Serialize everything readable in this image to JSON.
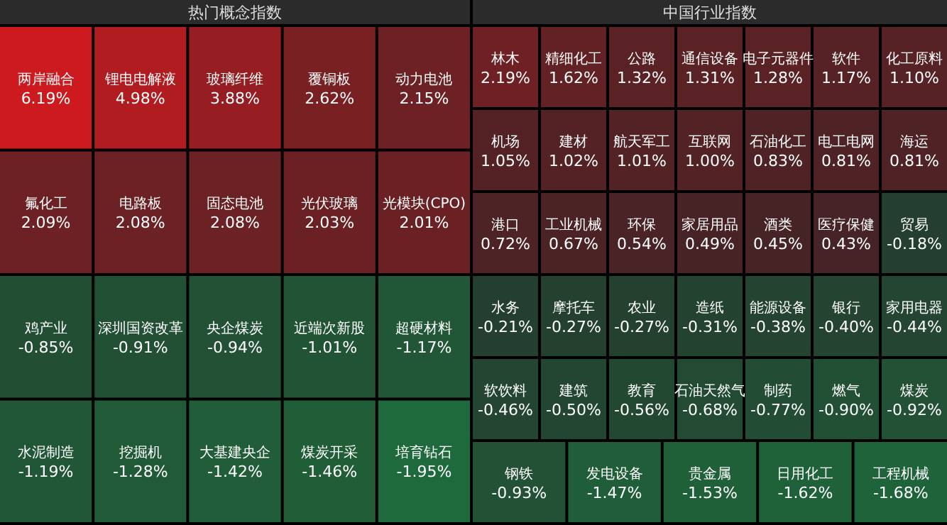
{
  "chart_data": [
    {
      "type": "other",
      "title": "热门概念指数",
      "categories": [
        "两岸融合",
        "锂电电解液",
        "玻璃纤维",
        "覆铜板",
        "动力电池",
        "氟化工",
        "电路板",
        "固态电池",
        "光伏玻璃",
        "光模块(CPO)",
        "鸡产业",
        "深圳国资改革",
        "央企煤炭",
        "近端次新股",
        "超硬材料",
        "水泥制造",
        "挖掘机",
        "大基建央企",
        "煤炭开采",
        "培育钻石"
      ],
      "values": [
        6.19,
        4.98,
        3.88,
        2.62,
        2.15,
        2.09,
        2.08,
        2.08,
        2.03,
        2.01,
        -0.85,
        -0.91,
        -0.94,
        -1.01,
        -1.17,
        -1.19,
        -1.28,
        -1.42,
        -1.46,
        -1.95
      ],
      "value_labels": [
        "6.19%",
        "4.98%",
        "3.88%",
        "2.62%",
        "2.15%",
        "2.09%",
        "2.08%",
        "2.08%",
        "2.03%",
        "2.01%",
        "-0.85%",
        "-0.91%",
        "-0.94%",
        "-1.01%",
        "-1.17%",
        "-1.19%",
        "-1.28%",
        "-1.42%",
        "-1.46%",
        "-1.95%"
      ]
    },
    {
      "type": "other",
      "title": "中国行业指数",
      "categories": [
        "林木",
        "精细化工",
        "公路",
        "通信设备",
        "电子元器件",
        "软件",
        "化工原料",
        "机场",
        "建材",
        "航天军工",
        "互联网",
        "石油化工",
        "电工电网",
        "海运",
        "港口",
        "工业机械",
        "环保",
        "家居用品",
        "酒类",
        "医疗保健",
        "贸易",
        "水务",
        "摩托车",
        "农业",
        "造纸",
        "能源设备",
        "银行",
        "家用电器",
        "软饮料",
        "建筑",
        "教育",
        "石油天然气",
        "制药",
        "燃气",
        "煤炭",
        "钢铁",
        "发电设备",
        "贵金属",
        "日用化工",
        "工程机械"
      ],
      "values": [
        2.19,
        1.62,
        1.32,
        1.31,
        1.28,
        1.17,
        1.1,
        1.05,
        1.02,
        1.01,
        1.0,
        0.83,
        0.81,
        0.81,
        0.72,
        0.67,
        0.54,
        0.49,
        0.45,
        0.43,
        -0.18,
        -0.21,
        -0.27,
        -0.27,
        -0.31,
        -0.38,
        -0.4,
        -0.44,
        -0.46,
        -0.5,
        -0.56,
        -0.68,
        -0.77,
        -0.9,
        -0.92,
        -0.93,
        -1.47,
        -1.53,
        -1.62,
        -1.68
      ],
      "value_labels": [
        "2.19%",
        "1.62%",
        "1.32%",
        "1.31%",
        "1.28%",
        "1.17%",
        "1.10%",
        "1.05%",
        "1.02%",
        "1.01%",
        "1.00%",
        "0.83%",
        "0.81%",
        "0.81%",
        "0.72%",
        "0.67%",
        "0.54%",
        "0.49%",
        "0.45%",
        "0.43%",
        "-0.18%",
        "-0.21%",
        "-0.27%",
        "-0.27%",
        "-0.31%",
        "-0.38%",
        "-0.40%",
        "-0.44%",
        "-0.46%",
        "-0.50%",
        "-0.56%",
        "-0.68%",
        "-0.77%",
        "-0.90%",
        "-0.92%",
        "-0.93%",
        "-1.47%",
        "-1.53%",
        "-1.62%",
        "-1.68%"
      ]
    }
  ]
}
